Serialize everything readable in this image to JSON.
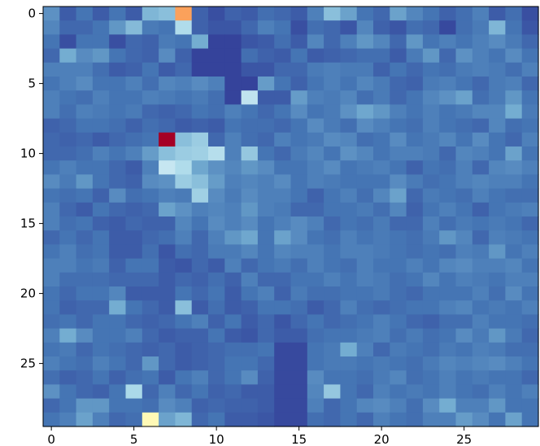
{
  "chart_data": {
    "type": "heatmap",
    "colormap": "RdYlBu_r",
    "vmin": 0,
    "vmax": 1,
    "rows": 30,
    "cols": 30,
    "x_ticks": [
      0,
      5,
      10,
      15,
      20,
      25
    ],
    "y_ticks": [
      0,
      5,
      10,
      15,
      20,
      25
    ],
    "xlim": [
      -0.5,
      29.5
    ],
    "ylim": [
      29.5,
      -0.5
    ],
    "values": [
      [
        0.15,
        0.06,
        0.1,
        0.06,
        0.1,
        0.06,
        0.22,
        0.24,
        0.72,
        0.07,
        0.04,
        0.07,
        0.06,
        0.09,
        0.08,
        0.06,
        0.12,
        0.24,
        0.18,
        0.1,
        0.08,
        0.18,
        0.13,
        0.1,
        0.07,
        0.09,
        0.12,
        0.06,
        0.09,
        0.04
      ],
      [
        0.13,
        0.08,
        0.08,
        0.1,
        0.16,
        0.23,
        0.11,
        0.1,
        0.31,
        0.07,
        0.05,
        0.05,
        0.08,
        0.12,
        0.1,
        0.04,
        0.09,
        0.08,
        0.05,
        0.13,
        0.07,
        0.05,
        0.09,
        0.08,
        0.03,
        0.09,
        0.11,
        0.22,
        0.1,
        0.05
      ],
      [
        0.1,
        0.04,
        0.1,
        0.1,
        0.04,
        0.08,
        0.07,
        0.11,
        0.1,
        0.2,
        0.02,
        0.02,
        0.05,
        0.06,
        0.09,
        0.06,
        0.13,
        0.08,
        0.12,
        0.16,
        0.13,
        0.08,
        0.16,
        0.1,
        0.12,
        0.1,
        0.12,
        0.14,
        0.11,
        0.08
      ],
      [
        0.08,
        0.2,
        0.14,
        0.16,
        0.1,
        0.08,
        0.07,
        0.14,
        0.07,
        0.02,
        0.02,
        0.02,
        0.09,
        0.07,
        0.06,
        0.1,
        0.06,
        0.07,
        0.08,
        0.09,
        0.09,
        0.06,
        0.11,
        0.16,
        0.08,
        0.15,
        0.12,
        0.1,
        0.14,
        0.1
      ],
      [
        0.12,
        0.12,
        0.12,
        0.09,
        0.06,
        0.07,
        0.1,
        0.06,
        0.08,
        0.02,
        0.02,
        0.02,
        0.05,
        0.05,
        0.08,
        0.08,
        0.11,
        0.12,
        0.11,
        0.11,
        0.07,
        0.1,
        0.08,
        0.1,
        0.09,
        0.11,
        0.12,
        0.11,
        0.09,
        0.12
      ],
      [
        0.1,
        0.12,
        0.14,
        0.1,
        0.1,
        0.12,
        0.09,
        0.13,
        0.12,
        0.14,
        0.12,
        0.02,
        0.02,
        0.17,
        0.1,
        0.07,
        0.1,
        0.12,
        0.1,
        0.13,
        0.11,
        0.08,
        0.07,
        0.11,
        0.12,
        0.1,
        0.08,
        0.11,
        0.12,
        0.08
      ],
      [
        0.12,
        0.1,
        0.09,
        0.12,
        0.1,
        0.1,
        0.12,
        0.11,
        0.1,
        0.11,
        0.09,
        0.02,
        0.34,
        0.06,
        0.06,
        0.17,
        0.12,
        0.11,
        0.13,
        0.09,
        0.11,
        0.08,
        0.1,
        0.13,
        0.15,
        0.18,
        0.09,
        0.11,
        0.16,
        0.1
      ],
      [
        0.12,
        0.09,
        0.12,
        0.11,
        0.1,
        0.11,
        0.08,
        0.07,
        0.08,
        0.1,
        0.09,
        0.12,
        0.1,
        0.08,
        0.1,
        0.14,
        0.1,
        0.11,
        0.15,
        0.19,
        0.16,
        0.12,
        0.1,
        0.12,
        0.1,
        0.11,
        0.13,
        0.13,
        0.2,
        0.11
      ],
      [
        0.07,
        0.08,
        0.1,
        0.1,
        0.09,
        0.07,
        0.09,
        0.08,
        0.06,
        0.07,
        0.06,
        0.1,
        0.09,
        0.09,
        0.08,
        0.1,
        0.14,
        0.11,
        0.09,
        0.14,
        0.12,
        0.1,
        0.09,
        0.12,
        0.1,
        0.09,
        0.08,
        0.13,
        0.09,
        0.1
      ],
      [
        0.08,
        0.07,
        0.08,
        0.06,
        0.08,
        0.09,
        0.1,
        1.0,
        0.24,
        0.27,
        0.08,
        0.12,
        0.09,
        0.08,
        0.12,
        0.1,
        0.11,
        0.14,
        0.13,
        0.09,
        0.1,
        0.14,
        0.1,
        0.11,
        0.13,
        0.1,
        0.14,
        0.1,
        0.08,
        0.12
      ],
      [
        0.08,
        0.08,
        0.09,
        0.12,
        0.1,
        0.12,
        0.17,
        0.24,
        0.27,
        0.28,
        0.32,
        0.12,
        0.26,
        0.1,
        0.08,
        0.11,
        0.13,
        0.1,
        0.15,
        0.13,
        0.1,
        0.12,
        0.12,
        0.11,
        0.08,
        0.13,
        0.12,
        0.1,
        0.18,
        0.1
      ],
      [
        0.1,
        0.12,
        0.1,
        0.1,
        0.08,
        0.06,
        0.12,
        0.35,
        0.31,
        0.19,
        0.15,
        0.13,
        0.16,
        0.14,
        0.1,
        0.1,
        0.12,
        0.14,
        0.1,
        0.11,
        0.12,
        0.1,
        0.07,
        0.1,
        0.09,
        0.12,
        0.08,
        0.13,
        0.14,
        0.12
      ],
      [
        0.14,
        0.11,
        0.16,
        0.1,
        0.08,
        0.07,
        0.14,
        0.15,
        0.27,
        0.24,
        0.17,
        0.12,
        0.13,
        0.12,
        0.14,
        0.1,
        0.12,
        0.11,
        0.1,
        0.1,
        0.1,
        0.14,
        0.11,
        0.09,
        0.1,
        0.12,
        0.13,
        0.12,
        0.12,
        0.1
      ],
      [
        0.1,
        0.09,
        0.1,
        0.07,
        0.14,
        0.09,
        0.1,
        0.12,
        0.11,
        0.28,
        0.14,
        0.11,
        0.14,
        0.12,
        0.12,
        0.1,
        0.07,
        0.1,
        0.12,
        0.09,
        0.13,
        0.18,
        0.08,
        0.11,
        0.1,
        0.09,
        0.12,
        0.1,
        0.09,
        0.09
      ],
      [
        0.12,
        0.08,
        0.06,
        0.1,
        0.08,
        0.07,
        0.08,
        0.18,
        0.15,
        0.12,
        0.13,
        0.12,
        0.16,
        0.12,
        0.11,
        0.08,
        0.08,
        0.1,
        0.1,
        0.11,
        0.09,
        0.13,
        0.07,
        0.1,
        0.12,
        0.1,
        0.07,
        0.1,
        0.11,
        0.12
      ],
      [
        0.12,
        0.09,
        0.1,
        0.07,
        0.06,
        0.08,
        0.07,
        0.07,
        0.13,
        0.1,
        0.14,
        0.12,
        0.14,
        0.1,
        0.12,
        0.14,
        0.12,
        0.08,
        0.1,
        0.09,
        0.11,
        0.08,
        0.08,
        0.12,
        0.09,
        0.11,
        0.1,
        0.11,
        0.1,
        0.08
      ],
      [
        0.08,
        0.1,
        0.08,
        0.1,
        0.06,
        0.06,
        0.08,
        0.09,
        0.12,
        0.08,
        0.12,
        0.16,
        0.19,
        0.1,
        0.18,
        0.14,
        0.1,
        0.09,
        0.12,
        0.1,
        0.11,
        0.1,
        0.09,
        0.11,
        0.16,
        0.13,
        0.08,
        0.12,
        0.11,
        0.1
      ],
      [
        0.1,
        0.12,
        0.09,
        0.1,
        0.06,
        0.06,
        0.09,
        0.05,
        0.09,
        0.08,
        0.11,
        0.11,
        0.13,
        0.1,
        0.13,
        0.12,
        0.12,
        0.1,
        0.12,
        0.12,
        0.11,
        0.1,
        0.09,
        0.1,
        0.09,
        0.12,
        0.11,
        0.16,
        0.1,
        0.12
      ],
      [
        0.12,
        0.12,
        0.1,
        0.11,
        0.07,
        0.1,
        0.1,
        0.06,
        0.05,
        0.08,
        0.06,
        0.12,
        0.08,
        0.1,
        0.11,
        0.09,
        0.12,
        0.1,
        0.09,
        0.12,
        0.1,
        0.1,
        0.12,
        0.1,
        0.13,
        0.14,
        0.12,
        0.12,
        0.13,
        0.1
      ],
      [
        0.12,
        0.09,
        0.09,
        0.09,
        0.08,
        0.08,
        0.08,
        0.06,
        0.08,
        0.07,
        0.09,
        0.07,
        0.12,
        0.08,
        0.08,
        0.1,
        0.1,
        0.12,
        0.1,
        0.12,
        0.11,
        0.09,
        0.1,
        0.13,
        0.1,
        0.12,
        0.11,
        0.1,
        0.12,
        0.12
      ],
      [
        0.1,
        0.08,
        0.1,
        0.1,
        0.13,
        0.06,
        0.06,
        0.06,
        0.1,
        0.08,
        0.1,
        0.06,
        0.1,
        0.12,
        0.07,
        0.11,
        0.09,
        0.09,
        0.1,
        0.1,
        0.11,
        0.09,
        0.08,
        0.1,
        0.1,
        0.1,
        0.12,
        0.09,
        0.14,
        0.1
      ],
      [
        0.1,
        0.07,
        0.08,
        0.08,
        0.2,
        0.1,
        0.08,
        0.06,
        0.24,
        0.06,
        0.09,
        0.06,
        0.07,
        0.1,
        0.1,
        0.09,
        0.06,
        0.08,
        0.12,
        0.09,
        0.08,
        0.09,
        0.1,
        0.1,
        0.12,
        0.13,
        0.1,
        0.11,
        0.1,
        0.12
      ],
      [
        0.09,
        0.1,
        0.08,
        0.1,
        0.1,
        0.08,
        0.07,
        0.08,
        0.1,
        0.12,
        0.07,
        0.1,
        0.06,
        0.08,
        0.05,
        0.08,
        0.1,
        0.08,
        0.09,
        0.1,
        0.12,
        0.1,
        0.08,
        0.07,
        0.09,
        0.09,
        0.12,
        0.1,
        0.1,
        0.09
      ],
      [
        0.12,
        0.2,
        0.14,
        0.1,
        0.1,
        0.12,
        0.08,
        0.06,
        0.07,
        0.07,
        0.1,
        0.06,
        0.05,
        0.08,
        0.06,
        0.06,
        0.09,
        0.1,
        0.1,
        0.11,
        0.12,
        0.09,
        0.11,
        0.09,
        0.1,
        0.14,
        0.11,
        0.16,
        0.11,
        0.08
      ],
      [
        0.1,
        0.11,
        0.08,
        0.1,
        0.09,
        0.08,
        0.07,
        0.08,
        0.06,
        0.07,
        0.08,
        0.09,
        0.09,
        0.1,
        0.03,
        0.03,
        0.1,
        0.11,
        0.2,
        0.12,
        0.08,
        0.11,
        0.1,
        0.09,
        0.11,
        0.1,
        0.12,
        0.11,
        0.09,
        0.09
      ],
      [
        0.12,
        0.1,
        0.09,
        0.12,
        0.1,
        0.08,
        0.16,
        0.08,
        0.06,
        0.07,
        0.08,
        0.1,
        0.1,
        0.08,
        0.03,
        0.03,
        0.1,
        0.11,
        0.11,
        0.1,
        0.11,
        0.1,
        0.09,
        0.11,
        0.13,
        0.12,
        0.13,
        0.14,
        0.12,
        0.1
      ],
      [
        0.09,
        0.07,
        0.08,
        0.1,
        0.07,
        0.09,
        0.1,
        0.06,
        0.1,
        0.12,
        0.08,
        0.1,
        0.14,
        0.07,
        0.03,
        0.03,
        0.14,
        0.1,
        0.1,
        0.09,
        0.11,
        0.13,
        0.09,
        0.1,
        0.12,
        0.1,
        0.11,
        0.1,
        0.1,
        0.08
      ],
      [
        0.15,
        0.1,
        0.08,
        0.07,
        0.1,
        0.3,
        0.08,
        0.12,
        0.08,
        0.1,
        0.07,
        0.08,
        0.06,
        0.06,
        0.03,
        0.03,
        0.13,
        0.26,
        0.1,
        0.08,
        0.12,
        0.1,
        0.11,
        0.1,
        0.12,
        0.1,
        0.09,
        0.12,
        0.1,
        0.12
      ],
      [
        0.08,
        0.1,
        0.16,
        0.16,
        0.1,
        0.1,
        0.09,
        0.14,
        0.12,
        0.07,
        0.08,
        0.07,
        0.07,
        0.06,
        0.03,
        0.03,
        0.12,
        0.08,
        0.1,
        0.13,
        0.14,
        0.12,
        0.09,
        0.14,
        0.2,
        0.12,
        0.12,
        0.16,
        0.1,
        0.1
      ],
      [
        0.1,
        0.12,
        0.18,
        0.12,
        0.08,
        0.09,
        0.52,
        0.18,
        0.22,
        0.08,
        0.1,
        0.06,
        0.06,
        0.05,
        0.03,
        0.03,
        0.09,
        0.08,
        0.1,
        0.08,
        0.12,
        0.1,
        0.09,
        0.12,
        0.12,
        0.17,
        0.14,
        0.1,
        0.18,
        0.1
      ]
    ]
  }
}
